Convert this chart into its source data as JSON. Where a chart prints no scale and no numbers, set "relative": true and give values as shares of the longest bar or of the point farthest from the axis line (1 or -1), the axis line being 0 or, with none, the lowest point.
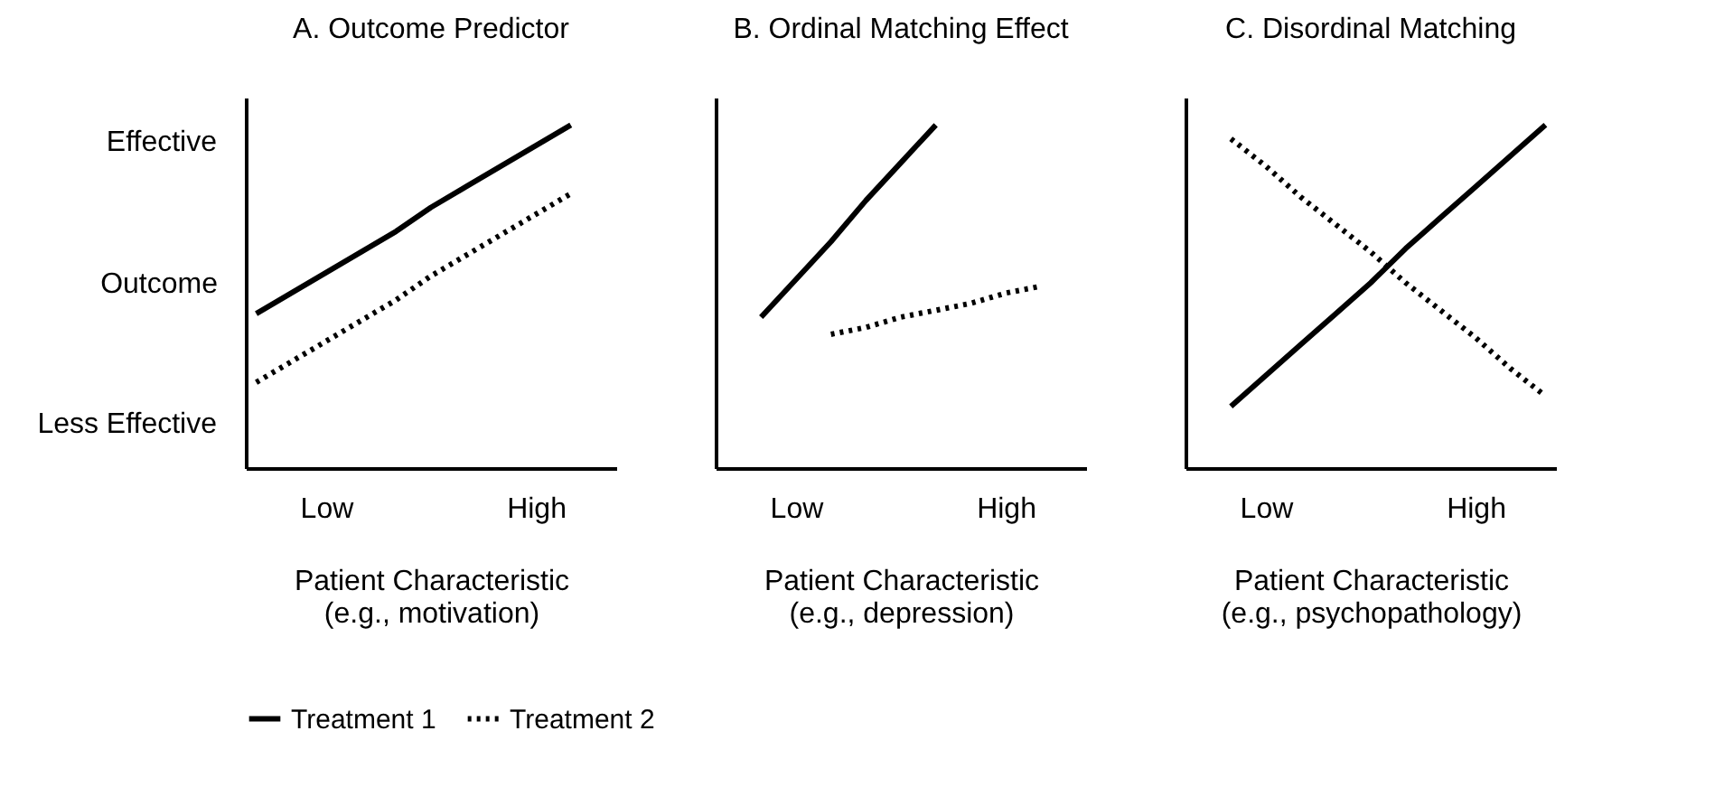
{
  "chart_data": [
    {
      "type": "line",
      "relative": true,
      "title": "A. Outcome Predictor",
      "xlabel": "Patient Characteristic\n(e.g., motivation)",
      "ylabel": "Outcome",
      "annotations": [
        "Effective",
        "Less Effective"
      ],
      "tick_labels": "x",
      "legend": "bottom",
      "categories": [
        null,
        null,
        "Low",
        null,
        null,
        null,
        null,
        null,
        "High",
        null,
        null
      ],
      "series": [
        {
          "name": "Treatment 1",
          "color": "#000000",
          "line_style": "solid",
          "values": [
            0.45,
            0.51,
            0.57,
            0.63,
            0.69,
            0.76,
            0.82,
            0.88,
            0.94,
            1.0,
            null
          ]
        },
        {
          "name": "Treatment 2",
          "color": "#000000",
          "line_style": "dotted",
          "values": [
            0.25,
            0.31,
            0.37,
            0.43,
            0.49,
            0.56,
            0.62,
            0.68,
            0.74,
            0.8,
            null
          ]
        }
      ]
    },
    {
      "type": "line",
      "relative": true,
      "title": "B. Ordinal Matching Effect",
      "xlabel": "Patient Characteristic\n(e.g., depression)",
      "tick_labels": "x",
      "legend": "bottom",
      "categories": [
        null,
        null,
        "Low",
        null,
        null,
        null,
        null,
        null,
        "High",
        null,
        null
      ],
      "series": [
        {
          "name": "Treatment 1",
          "color": "#000000",
          "line_style": "solid",
          "values": [
            null,
            0.44,
            0.55,
            0.66,
            0.78,
            0.89,
            1.0,
            null,
            null,
            null,
            null
          ]
        },
        {
          "name": "Treatment 2",
          "color": "#000000",
          "line_style": "dotted",
          "values": [
            null,
            null,
            null,
            0.39,
            0.41,
            0.44,
            0.46,
            0.48,
            0.51,
            0.53,
            null
          ]
        }
      ]
    },
    {
      "type": "line",
      "relative": true,
      "title": "C. Disordinal Matching",
      "xlabel": "Patient Characteristic\n(e.g., psychopathology)",
      "tick_labels": "x",
      "legend": "bottom",
      "categories": [
        null,
        null,
        "Low",
        null,
        null,
        null,
        null,
        null,
        "High",
        null,
        null
      ],
      "series": [
        {
          "name": "Treatment 1",
          "color": "#000000",
          "line_style": "solid",
          "values": [
            null,
            0.18,
            0.27,
            0.36,
            0.45,
            0.54,
            0.64,
            0.73,
            0.82,
            0.91,
            1.0
          ]
        },
        {
          "name": "Treatment 2",
          "color": "#000000",
          "line_style": "dotted",
          "values": [
            null,
            0.96,
            0.88,
            0.79,
            0.71,
            0.63,
            0.54,
            0.46,
            0.38,
            0.29,
            0.21
          ]
        }
      ]
    }
  ]
}
